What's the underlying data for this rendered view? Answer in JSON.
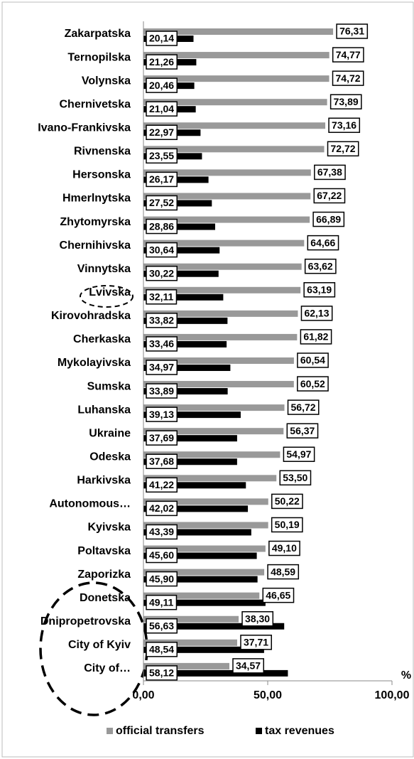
{
  "chart_data": {
    "type": "bar",
    "orientation": "horizontal",
    "categories": [
      "Zakarpatska",
      "Ternopilska",
      "Volynska",
      "Chernivetska",
      "Ivano-Frankivska",
      "Rivnenska",
      "Hersonska",
      "Hmerlnytska",
      "Zhytomyrska",
      "Chernihivska",
      "Vinnytska",
      "Lvivska",
      "Kirovohradska",
      "Cherkaska",
      "Mykolayivska",
      "Sumska",
      "Luhanska",
      "Ukraine",
      "Odeska",
      "Harkivska",
      "Autonomous…",
      "Kyivska",
      "Poltavska",
      "Zaporizka",
      "Donetska",
      "Dnipropetrovska",
      "City of Kyiv",
      "City of…"
    ],
    "series": [
      {
        "name": "official transfers",
        "color": "#999999",
        "values": [
          76.31,
          74.77,
          74.72,
          73.89,
          73.16,
          72.72,
          67.38,
          67.22,
          66.89,
          64.66,
          63.62,
          63.19,
          62.13,
          61.82,
          60.54,
          60.52,
          56.72,
          56.37,
          54.97,
          53.5,
          50.22,
          50.19,
          49.1,
          48.59,
          46.65,
          38.3,
          37.71,
          34.57
        ],
        "value_labels": [
          "76,31",
          "74,77",
          "74,72",
          "73,89",
          "73,16",
          "72,72",
          "67,38",
          "67,22",
          "66,89",
          "64,66",
          "63,62",
          "63,19",
          "62,13",
          "61,82",
          "60,54",
          "60,52",
          "56,72",
          "56,37",
          "54,97",
          "53,50",
          "50,22",
          "50,19",
          "49,10",
          "48,59",
          "46,65",
          "38,30",
          "37,71",
          "34,57"
        ]
      },
      {
        "name": "tax revenues",
        "color": "#000000",
        "values": [
          20.14,
          21.26,
          20.46,
          21.04,
          22.97,
          23.55,
          26.17,
          27.52,
          28.86,
          30.64,
          30.22,
          32.11,
          33.82,
          33.46,
          34.97,
          33.89,
          39.13,
          37.69,
          37.68,
          41.22,
          42.02,
          43.39,
          45.6,
          45.9,
          49.11,
          56.63,
          48.54,
          58.12
        ],
        "value_labels": [
          "20,14",
          "21,26",
          "20,46",
          "21,04",
          "22,97",
          "23,55",
          "26,17",
          "27,52",
          "28,86",
          "30,64",
          "30,22",
          "32,11",
          "33,82",
          "33,46",
          "34,97",
          "33,89",
          "39,13",
          "37,69",
          "37,68",
          "41,22",
          "42,02",
          "43,39",
          "45,60",
          "45,90",
          "49,11",
          "56,63",
          "48,54",
          "58,12"
        ]
      }
    ],
    "xlim": [
      0,
      100
    ],
    "xticks": [
      {
        "value": 0,
        "label": "0,00"
      },
      {
        "value": 50,
        "label": "50,00"
      },
      {
        "value": 100,
        "label": "100,00"
      }
    ],
    "x_label": "%",
    "legend": "bottom",
    "grid": false
  }
}
